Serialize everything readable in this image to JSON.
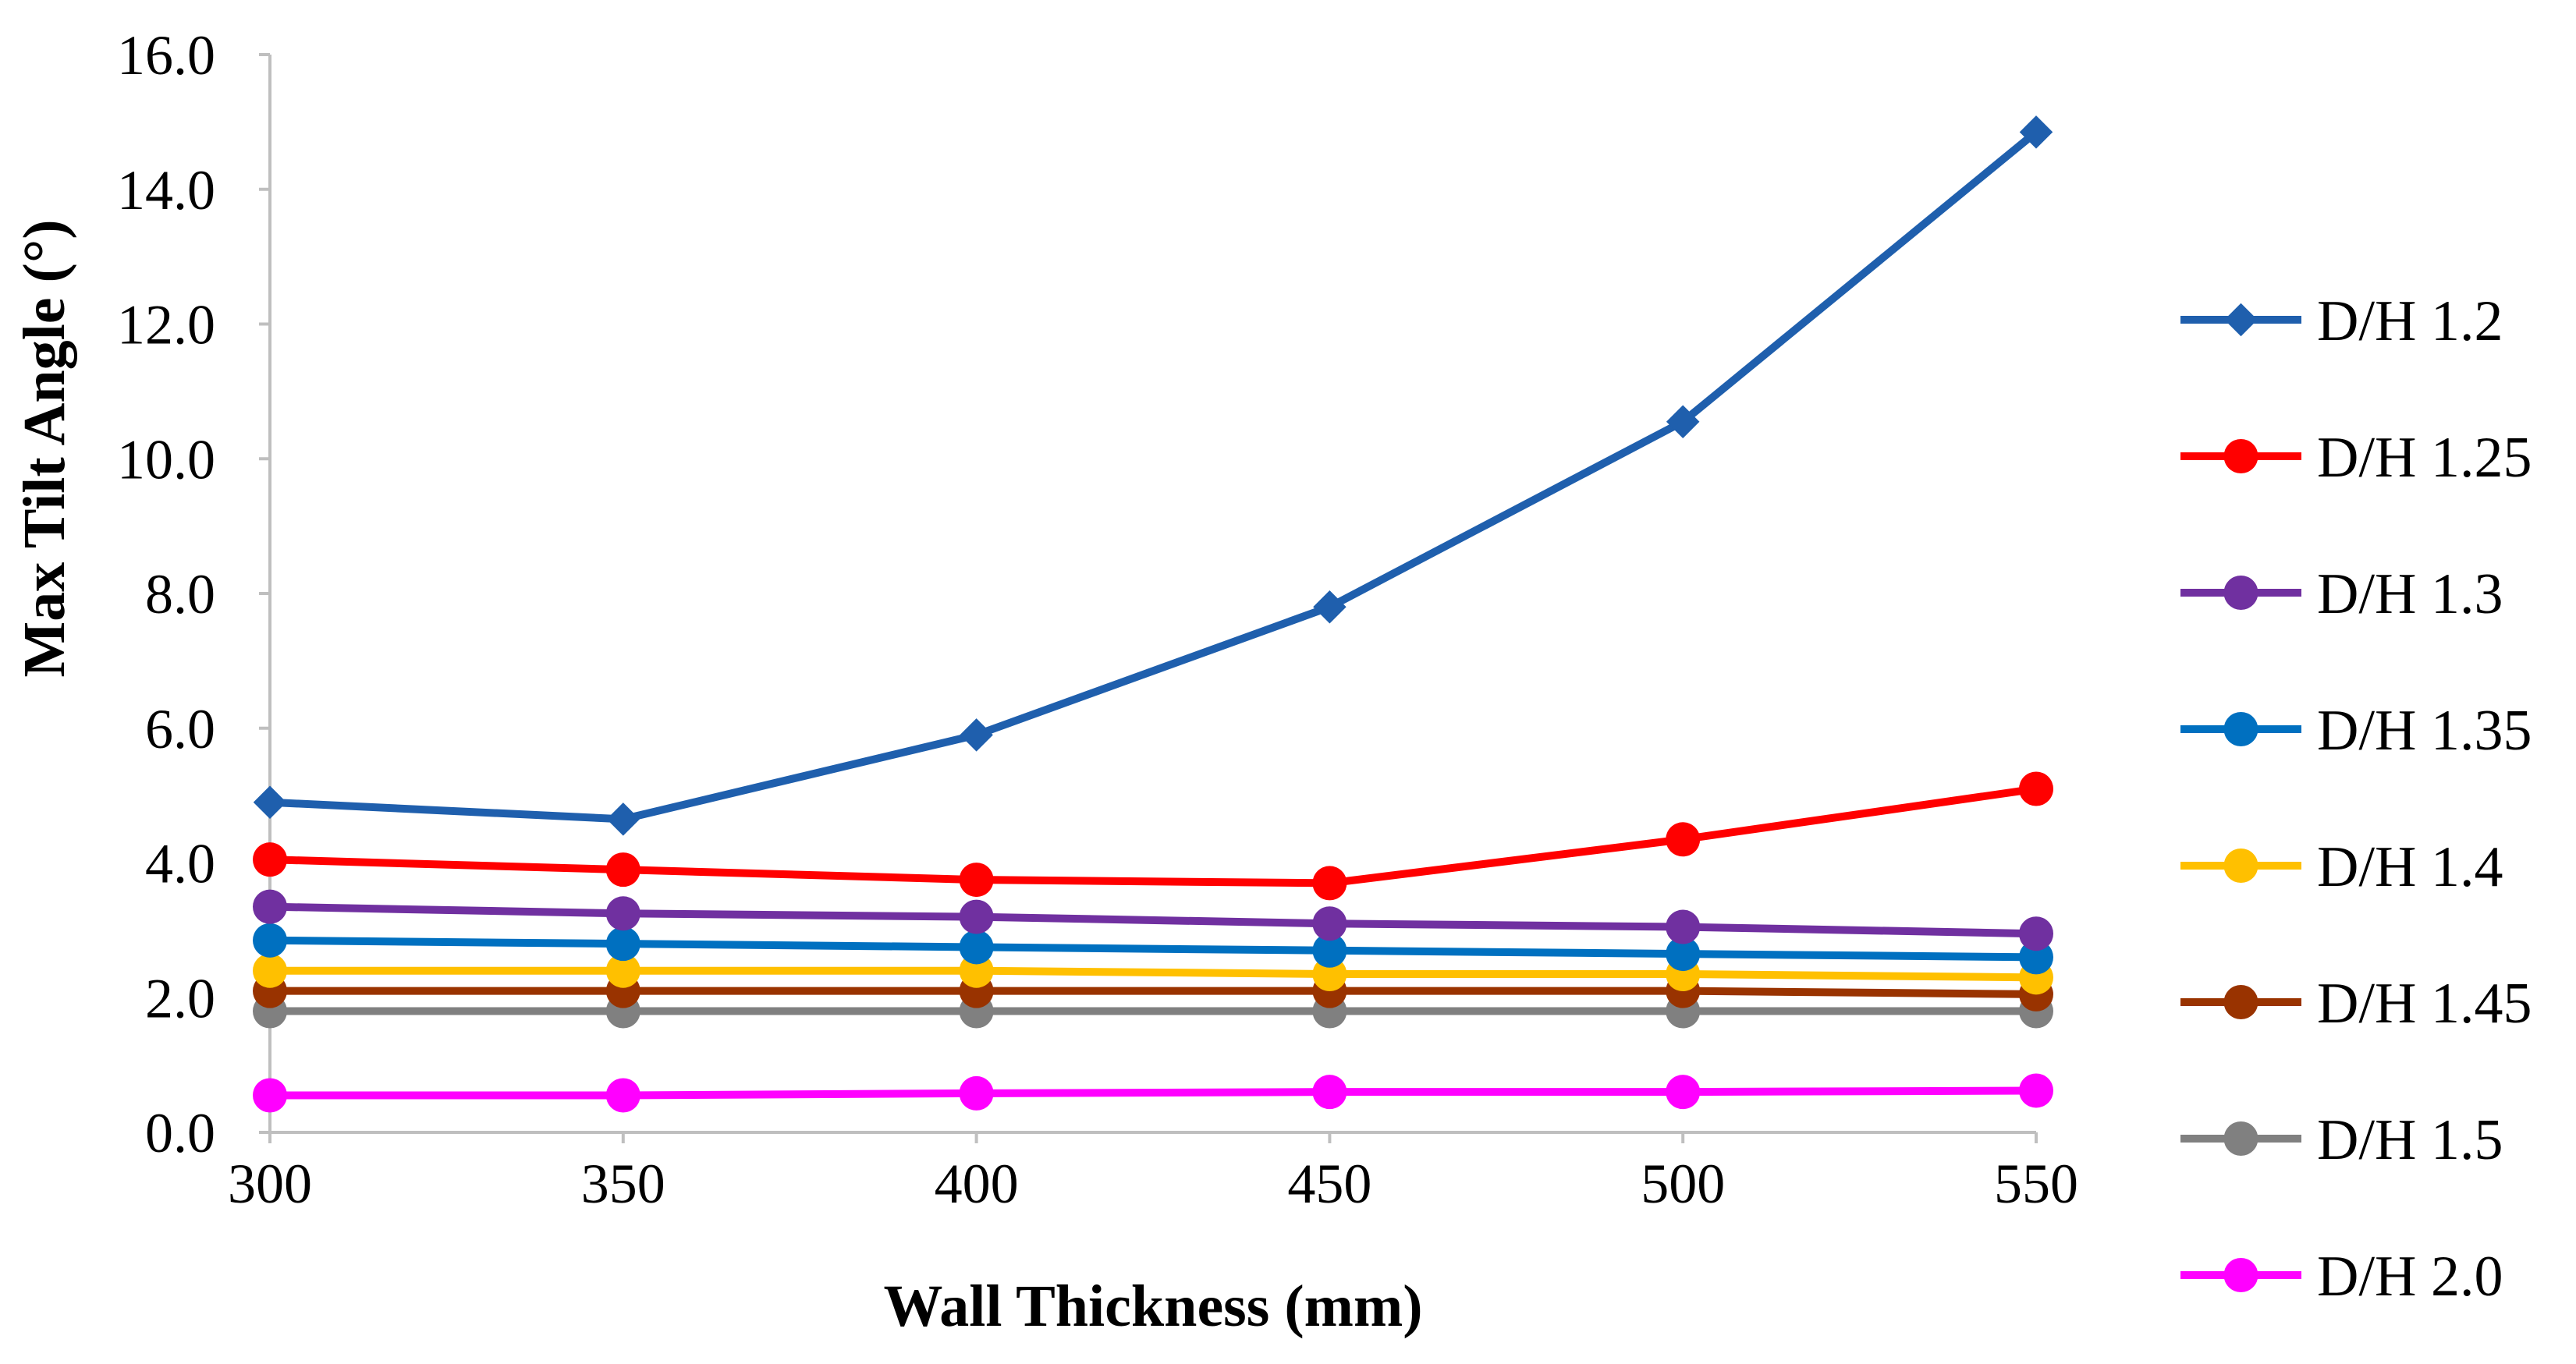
{
  "chart_data": {
    "type": "line",
    "title": "",
    "xlabel": "Wall Thickness (mm)",
    "ylabel": "Max Tilt Angle (°)",
    "x": [
      300,
      350,
      400,
      450,
      500,
      550
    ],
    "xticks": [
      "300",
      "350",
      "400",
      "450",
      "500",
      "550"
    ],
    "ylim": [
      0,
      16
    ],
    "yticks": [
      "0.0",
      "2.0",
      "4.0",
      "6.0",
      "8.0",
      "10.0",
      "12.0",
      "14.0",
      "16.0"
    ],
    "grid": false,
    "legend_position": "right",
    "series": [
      {
        "name": "D/H 1.2",
        "color": "#1F5FAD",
        "marker": "diamond",
        "values": [
          4.9,
          4.65,
          5.9,
          7.8,
          10.55,
          14.85
        ]
      },
      {
        "name": "D/H 1.25",
        "color": "#FF0000",
        "marker": "circle",
        "values": [
          4.05,
          3.9,
          3.75,
          3.7,
          4.35,
          5.1
        ]
      },
      {
        "name": "D/H 1.3",
        "color": "#7030A0",
        "marker": "circle",
        "values": [
          3.35,
          3.25,
          3.2,
          3.1,
          3.05,
          2.95
        ]
      },
      {
        "name": "D/H 1.35",
        "color": "#0070C0",
        "marker": "circle",
        "values": [
          2.85,
          2.8,
          2.75,
          2.7,
          2.65,
          2.6
        ]
      },
      {
        "name": "D/H 1.4",
        "color": "#FFC000",
        "marker": "circle",
        "values": [
          2.4,
          2.4,
          2.4,
          2.35,
          2.35,
          2.3
        ]
      },
      {
        "name": "D/H 1.45",
        "color": "#993300",
        "marker": "circle",
        "values": [
          2.1,
          2.1,
          2.1,
          2.1,
          2.1,
          2.05
        ]
      },
      {
        "name": "D/H 1.5",
        "color": "#808080",
        "marker": "circle",
        "values": [
          1.8,
          1.8,
          1.8,
          1.8,
          1.8,
          1.8
        ]
      },
      {
        "name": "D/H 2.0",
        "color": "#FF00FF",
        "marker": "circle",
        "values": [
          0.55,
          0.55,
          0.58,
          0.6,
          0.6,
          0.62
        ]
      }
    ]
  }
}
